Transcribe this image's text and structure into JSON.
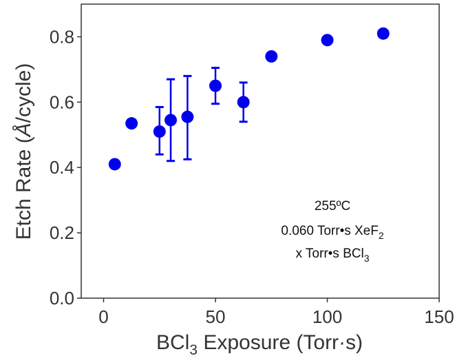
{
  "chart_data": {
    "type": "scatter",
    "xlabel": {
      "pre": "BCl",
      "sub": "3",
      "post": " Exposure (Torr·s)"
    },
    "ylabel": {
      "pre": "Etch Rate (",
      "italic": "Å",
      "post": "/cycle)"
    },
    "xlim": [
      -10,
      150
    ],
    "ylim": [
      0.0,
      0.9
    ],
    "xticks": [
      0,
      50,
      100,
      150
    ],
    "yticks": [
      0.0,
      0.2,
      0.4,
      0.6,
      0.8
    ],
    "xtick_labels": [
      "0",
      "50",
      "100",
      "150"
    ],
    "ytick_labels": [
      "0.0",
      "0.2",
      "0.4",
      "0.6",
      "0.8"
    ],
    "grid": false,
    "series": [
      {
        "color": "#0000ee",
        "points": [
          {
            "x": 5,
            "y": 0.41,
            "err_low": null,
            "err_high": null
          },
          {
            "x": 12.5,
            "y": 0.535,
            "err_low": null,
            "err_high": null
          },
          {
            "x": 25,
            "y": 0.51,
            "err_low": 0.44,
            "err_high": 0.585
          },
          {
            "x": 30,
            "y": 0.545,
            "err_low": 0.42,
            "err_high": 0.67
          },
          {
            "x": 37.5,
            "y": 0.555,
            "err_low": 0.425,
            "err_high": 0.68
          },
          {
            "x": 50,
            "y": 0.65,
            "err_low": 0.595,
            "err_high": 0.705
          },
          {
            "x": 62.5,
            "y": 0.6,
            "err_low": 0.54,
            "err_high": 0.66
          },
          {
            "x": 75,
            "y": 0.74,
            "err_low": null,
            "err_high": null
          },
          {
            "x": 100,
            "y": 0.79,
            "err_low": null,
            "err_high": null
          },
          {
            "x": 125,
            "y": 0.81,
            "err_low": null,
            "err_high": null
          }
        ]
      }
    ],
    "annotations": [
      {
        "pre": "255ºC",
        "sub": "",
        "post": ""
      },
      {
        "pre": "0.060 Torr•s XeF",
        "sub": "2",
        "post": ""
      },
      {
        "pre": "x Torr•s BCl",
        "sub": "3",
        "post": ""
      }
    ]
  }
}
